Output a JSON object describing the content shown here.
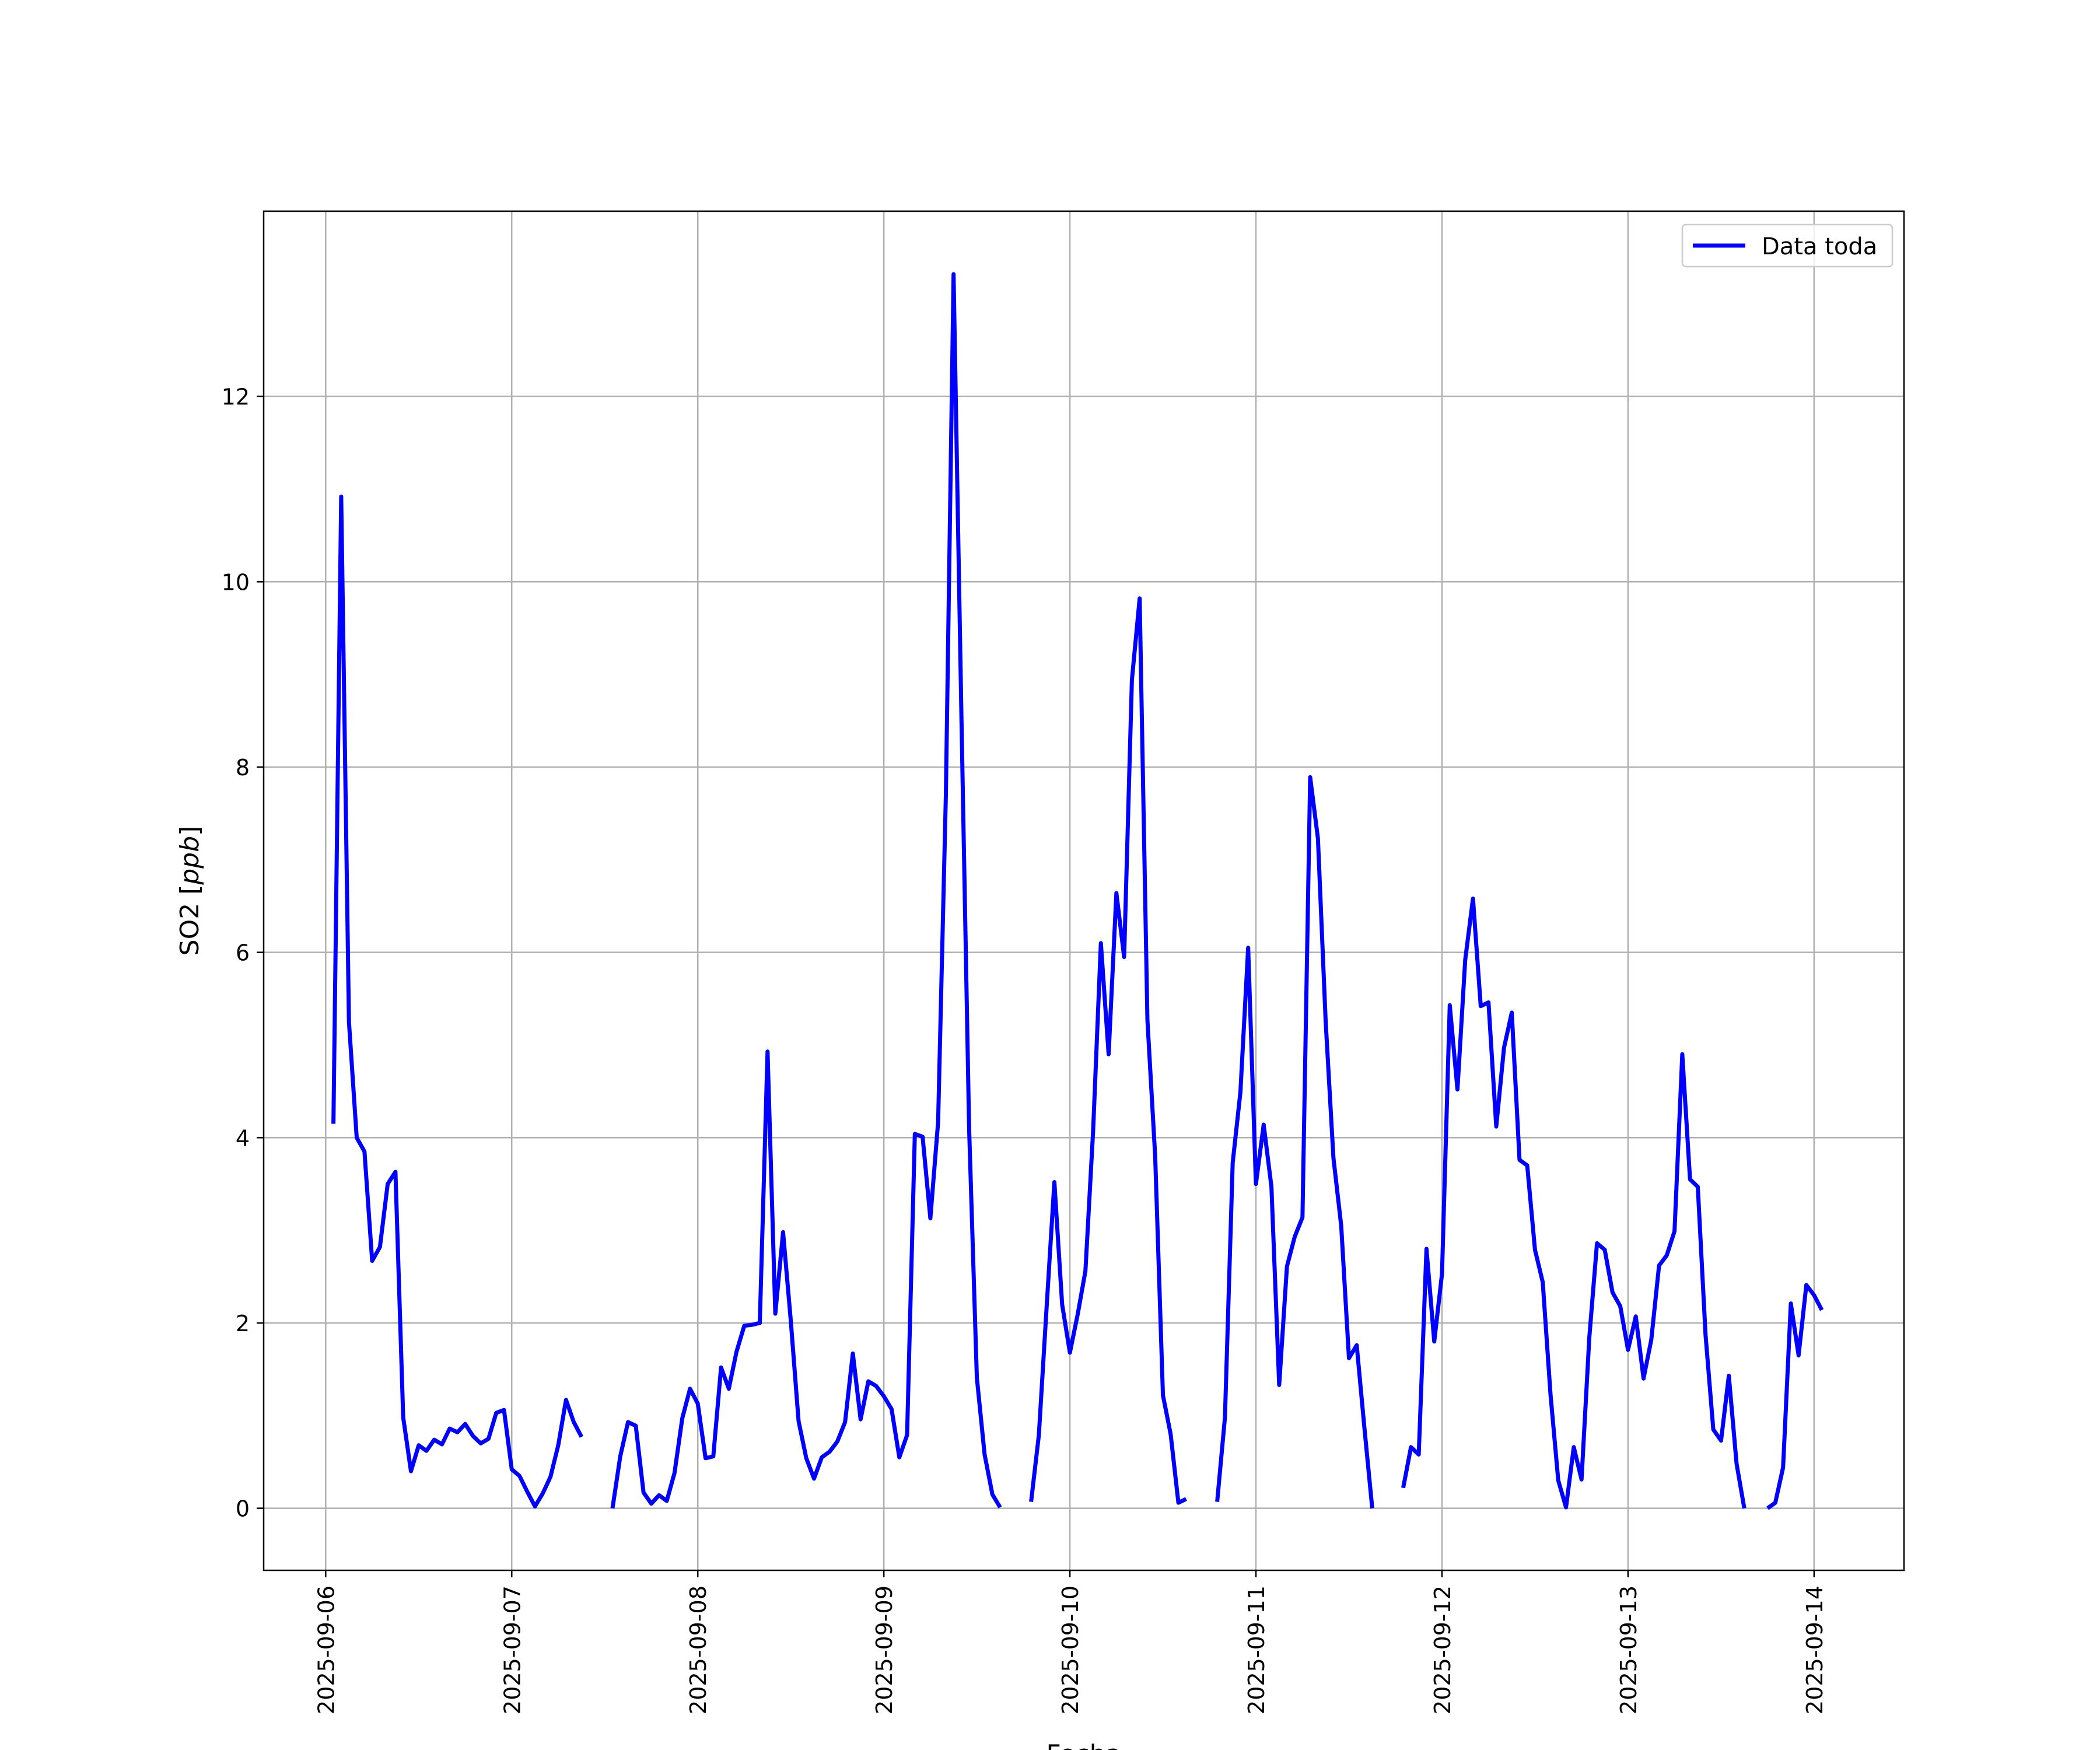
{
  "chart_data": {
    "type": "line",
    "title": "",
    "xlabel": "Fecha",
    "ylabel": "SO2 [",
    "ylabel_unit": "ppb",
    "ylabel_close": "]",
    "xlim": [
      "2025-09-05 16:00",
      "2025-09-14 11:36"
    ],
    "ylim": [
      -0.67,
      14.0
    ],
    "grid": true,
    "legend_position": "top-right",
    "x_ticks": [
      "2025-09-06",
      "2025-09-07",
      "2025-09-08",
      "2025-09-09",
      "2025-09-10",
      "2025-09-11",
      "2025-09-12",
      "2025-09-13",
      "2025-09-14"
    ],
    "y_ticks": [
      0,
      2,
      4,
      6,
      8,
      10,
      12
    ],
    "y_tick_labels": [
      "0",
      "2",
      "4",
      "6",
      "8",
      "10",
      "12"
    ],
    "series": [
      {
        "name": "Data toda",
        "color": "#0000ff",
        "x_unit": "datetime, 1 h step",
        "x_start": "2025-09-06 01:00",
        "values": [
          4.15,
          10.92,
          5.25,
          4.0,
          3.85,
          2.67,
          2.82,
          3.5,
          3.63,
          0.98,
          0.4,
          0.68,
          0.62,
          0.74,
          0.69,
          0.86,
          0.82,
          0.91,
          0.78,
          0.7,
          0.75,
          1.03,
          1.06,
          0.42,
          0.35,
          0.18,
          0.02,
          0.16,
          0.34,
          0.68,
          1.17,
          0.93,
          0.77,
          null,
          null,
          null,
          0.0,
          0.56,
          0.93,
          0.89,
          0.17,
          0.05,
          0.14,
          0.08,
          0.38,
          0.97,
          1.29,
          1.13,
          0.54,
          0.56,
          1.52,
          1.29,
          1.69,
          1.97,
          1.98,
          2.0,
          4.93,
          2.1,
          2.98,
          2.02,
          0.94,
          0.54,
          0.32,
          0.55,
          0.61,
          0.72,
          0.93,
          1.67,
          0.96,
          1.37,
          1.32,
          1.21,
          1.07,
          0.55,
          0.79,
          4.04,
          4.01,
          3.13,
          4.17,
          7.7,
          13.32,
          8.6,
          4.11,
          1.41,
          0.58,
          0.15,
          0.01,
          null,
          null,
          null,
          0.07,
          0.79,
          2.17,
          3.52,
          2.2,
          1.68,
          2.09,
          2.56,
          4.07,
          6.1,
          4.9,
          6.64,
          5.95,
          8.94,
          9.82,
          5.27,
          3.8,
          1.22,
          0.8,
          0.06,
          0.1,
          null,
          null,
          null,
          0.07,
          0.98,
          3.73,
          4.49,
          6.05,
          3.5,
          4.14,
          3.47,
          1.33,
          2.61,
          2.93,
          3.14,
          7.89,
          7.23,
          5.25,
          3.78,
          3.05,
          1.62,
          1.76,
          0.86,
          0.0,
          null,
          null,
          null,
          0.22,
          0.66,
          0.58,
          2.8,
          1.8,
          2.53,
          5.43,
          4.52,
          5.92,
          6.58,
          5.42,
          5.46,
          4.12,
          4.97,
          5.35,
          3.76,
          3.7,
          2.79,
          2.44,
          1.23,
          0.3,
          0.01,
          0.66,
          0.31,
          1.84,
          2.86,
          2.79,
          2.33,
          2.18,
          1.71,
          2.07,
          1.4,
          1.82,
          2.62,
          2.73,
          2.99,
          4.9,
          3.55,
          3.47,
          1.87,
          0.85,
          0.73,
          1.43,
          0.48,
          0.0,
          null,
          null,
          0.0,
          0.06,
          0.44,
          2.21,
          1.65,
          2.41,
          2.3,
          2.14
        ]
      }
    ]
  }
}
